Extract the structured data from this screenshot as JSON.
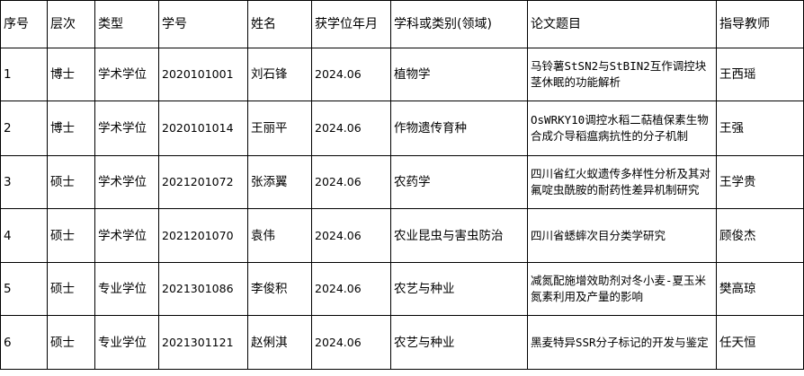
{
  "table": {
    "header": [
      "序号",
      "层次",
      "类型",
      "学号",
      "姓名",
      "获学位年月",
      "学科或类别(领域)",
      "论文题目",
      "指导教师"
    ],
    "rows": [
      [
        "1",
        "博士",
        "学术学位",
        "2020101001",
        "刘石锋",
        "2024.06",
        "植物学",
        "马铃薯StSN2与StBIN2互作调控块茎休眠的功能解析",
        "王西瑶"
      ],
      [
        "2",
        "博士",
        "学术学位",
        "2020101014",
        "王丽平",
        "2024.06",
        "作物遗传育种",
        "OsWRKY10调控水稻二萜植保素生物合成介导稻瘟病抗性的分子机制",
        "王强"
      ],
      [
        "3",
        "硕士",
        "学术学位",
        "2021201072",
        "张添翼",
        "2024.06",
        "农药学",
        "四川省红火蚁遗传多样性分析及其对氟啶虫酰胺的耐药性差异机制研究",
        "王学贵"
      ],
      [
        "4",
        "硕士",
        "学术学位",
        "2021201070",
        "袁伟",
        "2024.06",
        "农业昆虫与害虫防治",
        "四川省蟋蟀次目分类学研究",
        "顾俊杰"
      ],
      [
        "5",
        "硕士",
        "专业学位",
        "2021301086",
        "李俊积",
        "2024.06",
        "农艺与种业",
        "减氮配施增效助剂对冬小麦-夏玉米氮素利用及产量的影响",
        "樊高琼"
      ],
      [
        "6",
        "硕士",
        "专业学位",
        "2021301121",
        "赵俐淇",
        "2024.06",
        "农艺与种业",
        "黑麦特异SSR分子标记的开发与鉴定",
        "任天恒"
      ]
    ]
  }
}
